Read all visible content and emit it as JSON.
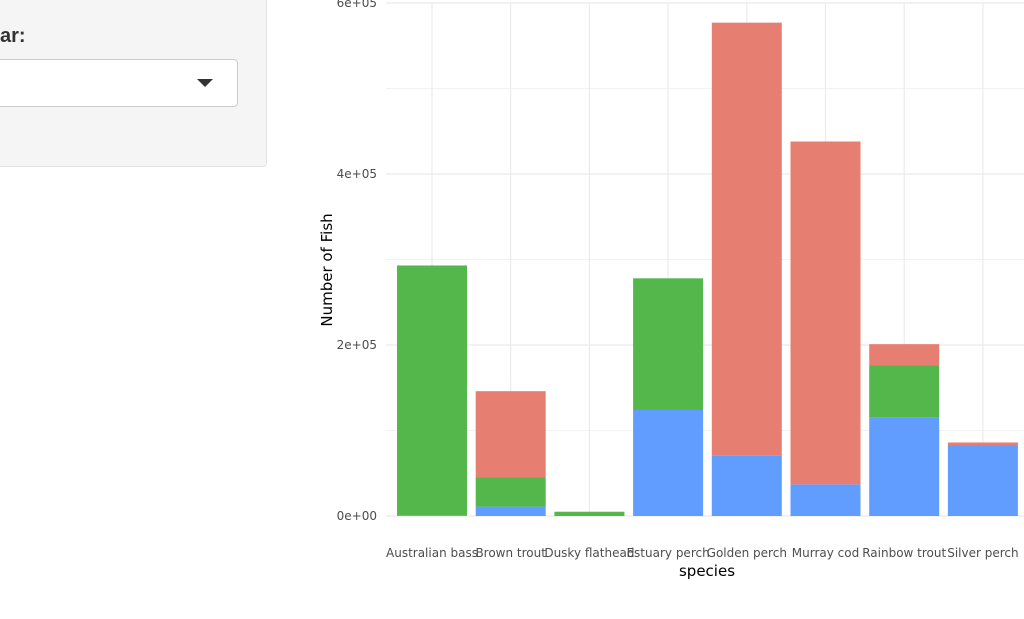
{
  "sidebar": {
    "select_label": "ar:",
    "select_value": ""
  },
  "chart_data": {
    "type": "bar",
    "stacked": true,
    "categories": [
      "Australian bass",
      "Brown trout",
      "Dusky flathead",
      "Estuary perch",
      "Golden perch",
      "Murray cod",
      "Rainbow trout",
      "Silver perch"
    ],
    "series": [
      {
        "color": "#619cff",
        "values": [
          1000,
          11000,
          0,
          124000,
          71000,
          37000,
          115000,
          83000
        ]
      },
      {
        "color": "#53b74c",
        "values": [
          292000,
          34000,
          5000,
          154000,
          0,
          0,
          61000,
          0
        ]
      },
      {
        "color": "#e67f72",
        "values": [
          0,
          101000,
          0,
          0,
          506000,
          401000,
          25000,
          3000
        ]
      }
    ],
    "xlabel": "species",
    "ylabel": "Number of Fish",
    "ylim": [
      0,
      600000
    ],
    "yticks": [
      0,
      200000,
      400000,
      600000
    ],
    "ytick_labels": [
      "0e+00",
      "2e+05",
      "4e+05",
      "6e+05"
    ],
    "grid": true
  }
}
